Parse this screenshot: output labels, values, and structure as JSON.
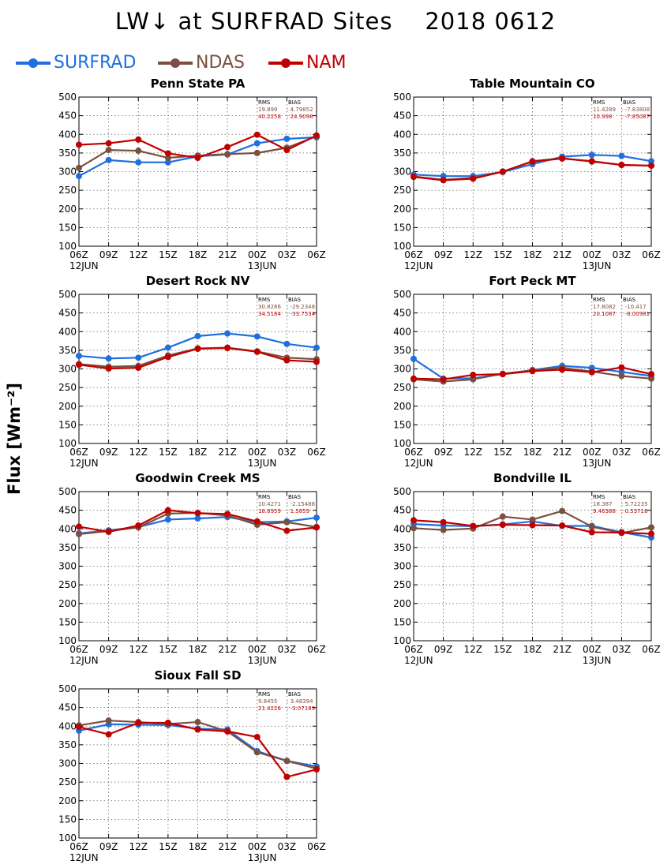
{
  "title": "LW↓ at SURFRAD Sites    2018 0612",
  "ylabel": "Flux [Wm⁻²]",
  "legend": [
    {
      "name": "SURFRAD",
      "color": "#1f6fe0"
    },
    {
      "name": "NDAS",
      "color": "#7a5040"
    },
    {
      "name": "NAM",
      "color": "#c00000"
    }
  ],
  "stat_headers": {
    "rms": "RMS",
    "bias": "BIAS"
  },
  "chart_data": [
    {
      "type": "line",
      "title": "Penn State PA",
      "x": [
        "06Z",
        "09Z",
        "12Z",
        "15Z",
        "18Z",
        "21Z",
        "00Z",
        "03Z",
        "06Z"
      ],
      "date_labels": [
        "12JUN",
        "13JUN"
      ],
      "ylim": [
        100,
        500
      ],
      "grid": true,
      "series": [
        {
          "name": "SURFRAD",
          "values": [
            288,
            331,
            325,
            325,
            341,
            346,
            376,
            388,
            392
          ]
        },
        {
          "name": "NDAS",
          "values": [
            310,
            358,
            356,
            337,
            343,
            347,
            350,
            364,
            395
          ]
        },
        {
          "name": "NAM",
          "values": [
            372,
            376,
            386,
            349,
            337,
            366,
            399,
            358,
            397
          ]
        }
      ],
      "stats": {
        "ndas": {
          "rms": "19.899",
          "bias": "4.79852"
        },
        "nam": {
          "rms": "40.2258",
          "bias": "24.9098"
        }
      }
    },
    {
      "type": "line",
      "title": "Table Mountain CO",
      "x": [
        "06Z",
        "09Z",
        "12Z",
        "15Z",
        "18Z",
        "21Z",
        "00Z",
        "03Z",
        "06Z"
      ],
      "date_labels": [
        "12JUN",
        "13JUN"
      ],
      "ylim": [
        100,
        500
      ],
      "grid": true,
      "series": [
        {
          "name": "SURFRAD",
          "values": [
            292,
            288,
            288,
            299,
            320,
            340,
            345,
            342,
            328
          ]
        },
        {
          "name": "NDAS",
          "values": [
            287,
            278,
            283,
            300,
            328,
            336,
            327,
            318,
            316
          ]
        },
        {
          "name": "NAM",
          "values": [
            286,
            277,
            281,
            300,
            327,
            335,
            328,
            318,
            316
          ]
        }
      ],
      "stats": {
        "ndas": {
          "rms": "11.4289",
          "bias": "-7.83808"
        },
        "nam": {
          "rms": "10.998",
          "bias": "-7.85087"
        }
      }
    },
    {
      "type": "line",
      "title": "Desert Rock NV",
      "x": [
        "06Z",
        "09Z",
        "12Z",
        "15Z",
        "18Z",
        "21Z",
        "00Z",
        "03Z",
        "06Z"
      ],
      "date_labels": [
        "12JUN",
        "13JUN"
      ],
      "ylim": [
        100,
        500
      ],
      "grid": true,
      "series": [
        {
          "name": "SURFRAD",
          "values": [
            335,
            328,
            330,
            357,
            388,
            395,
            387,
            367,
            357
          ]
        },
        {
          "name": "NDAS",
          "values": [
            313,
            306,
            308,
            336,
            355,
            357,
            347,
            330,
            326
          ]
        },
        {
          "name": "NAM",
          "values": [
            311,
            301,
            303,
            332,
            354,
            356,
            346,
            323,
            319
          ]
        }
      ],
      "stats": {
        "ndas": {
          "rms": "30.8286",
          "bias": "-29.2348"
        },
        "nam": {
          "rms": "34.5184",
          "bias": "-33.7534"
        }
      }
    },
    {
      "type": "line",
      "title": "Fort Peck MT",
      "x": [
        "06Z",
        "09Z",
        "12Z",
        "15Z",
        "18Z",
        "21Z",
        "00Z",
        "03Z",
        "06Z"
      ],
      "date_labels": [
        "12JUN",
        "13JUN"
      ],
      "ylim": [
        100,
        500
      ],
      "grid": true,
      "series": [
        {
          "name": "SURFRAD",
          "values": [
            327,
            274,
            275,
            286,
            297,
            308,
            303,
            292,
            281
          ]
        },
        {
          "name": "NDAS",
          "values": [
            272,
            266,
            272,
            287,
            296,
            303,
            293,
            281,
            274
          ]
        },
        {
          "name": "NAM",
          "values": [
            274,
            272,
            284,
            286,
            294,
            298,
            291,
            304,
            286
          ]
        }
      ],
      "stats": {
        "ndas": {
          "rms": "17.8082",
          "bias": "-10.417"
        },
        "nam": {
          "rms": "20.1087",
          "bias": "-8.00981"
        }
      }
    },
    {
      "type": "line",
      "title": "Goodwin Creek MS",
      "x": [
        "06Z",
        "09Z",
        "12Z",
        "15Z",
        "18Z",
        "21Z",
        "00Z",
        "03Z",
        "06Z"
      ],
      "date_labels": [
        "12JUN",
        "13JUN"
      ],
      "ylim": [
        100,
        500
      ],
      "grid": true,
      "series": [
        {
          "name": "SURFRAD",
          "values": [
            388,
            396,
            405,
            425,
            428,
            432,
            418,
            420,
            430
          ]
        },
        {
          "name": "NDAS",
          "values": [
            386,
            394,
            404,
            441,
            443,
            436,
            411,
            418,
            405
          ]
        },
        {
          "name": "NAM",
          "values": [
            406,
            392,
            409,
            450,
            442,
            440,
            420,
            395,
            404
          ]
        }
      ],
      "stats": {
        "ndas": {
          "rms": "10.4271",
          "bias": "-2.15488"
        },
        "nam": {
          "rms": "18.8959",
          "bias": "1.5859"
        }
      }
    },
    {
      "type": "line",
      "title": "Bondville IL",
      "x": [
        "06Z",
        "09Z",
        "12Z",
        "15Z",
        "18Z",
        "21Z",
        "00Z",
        "03Z",
        "06Z"
      ],
      "date_labels": [
        "12JUN",
        "13JUN"
      ],
      "ylim": [
        100,
        500
      ],
      "grid": true,
      "series": [
        {
          "name": "SURFRAD",
          "values": [
            413,
            409,
            407,
            412,
            420,
            408,
            408,
            391,
            377
          ]
        },
        {
          "name": "NDAS",
          "values": [
            402,
            397,
            401,
            433,
            425,
            448,
            406,
            389,
            404
          ]
        },
        {
          "name": "NAM",
          "values": [
            423,
            418,
            408,
            411,
            410,
            409,
            391,
            390,
            387
          ]
        }
      ],
      "stats": {
        "ndas": {
          "rms": "18.387",
          "bias": "5.72235"
        },
        "nam": {
          "rms": "9.46388",
          "bias": "0.53718"
        }
      }
    },
    {
      "type": "line",
      "title": "Sioux Fall SD",
      "x": [
        "06Z",
        "09Z",
        "12Z",
        "15Z",
        "18Z",
        "21Z",
        "00Z",
        "03Z",
        "06Z"
      ],
      "date_labels": [
        "12JUN",
        "13JUN"
      ],
      "ylim": [
        100,
        500
      ],
      "grid": true,
      "series": [
        {
          "name": "SURFRAD",
          "values": [
            388,
            405,
            404,
            403,
            393,
            391,
            333,
            307,
            292
          ]
        },
        {
          "name": "NDAS",
          "values": [
            402,
            415,
            411,
            406,
            411,
            386,
            330,
            307,
            286
          ]
        },
        {
          "name": "NAM",
          "values": [
            398,
            378,
            409,
            409,
            391,
            386,
            371,
            264,
            284
          ]
        }
      ],
      "stats": {
        "ndas": {
          "rms": "9.8455",
          "bias": "3.48394"
        },
        "nam": {
          "rms": "21.4226",
          "bias": "-3.07189"
        }
      }
    }
  ]
}
